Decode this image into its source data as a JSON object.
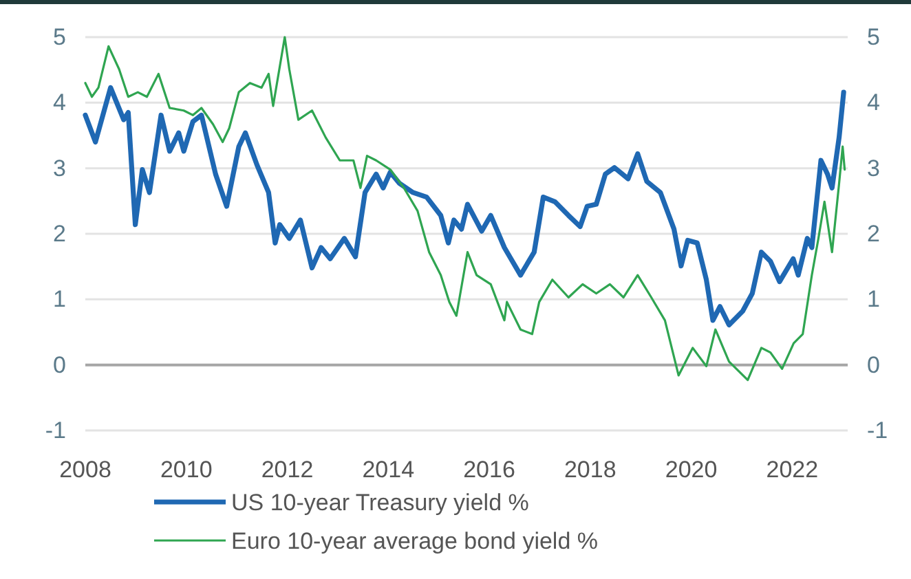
{
  "chart_data": {
    "type": "line",
    "xlim": [
      2008,
      2023.1
    ],
    "xticks": [
      2008,
      2010,
      2012,
      2014,
      2016,
      2018,
      2020,
      2022
    ],
    "ylim": [
      -1,
      5
    ],
    "yticks": [
      -1,
      0,
      1,
      2,
      3,
      4,
      5
    ],
    "y2lim": [
      -1,
      5
    ],
    "y2ticks": [
      -1,
      0,
      1,
      2,
      3,
      4,
      5
    ],
    "grid": "y",
    "legend": "bottom",
    "line_style": "solid",
    "marker": "none",
    "ref_lines": [
      {
        "axis": "y",
        "value": 0,
        "color": "#a6a6a6"
      }
    ],
    "series": [
      {
        "name": "US 10-year Treasury yield %",
        "color": "#1f68b3",
        "x": [
          2008.0,
          2008.2,
          2008.5,
          2008.76,
          2008.85,
          2008.99,
          2009.13,
          2009.27,
          2009.5,
          2009.67,
          2009.85,
          2009.95,
          2010.13,
          2010.3,
          2010.58,
          2010.8,
          2011.04,
          2011.17,
          2011.4,
          2011.63,
          2011.76,
          2011.85,
          2012.04,
          2012.26,
          2012.49,
          2012.67,
          2012.85,
          2013.13,
          2013.35,
          2013.54,
          2013.76,
          2013.9,
          2014.04,
          2014.22,
          2014.49,
          2014.76,
          2015.04,
          2015.19,
          2015.3,
          2015.45,
          2015.57,
          2015.85,
          2016.03,
          2016.3,
          2016.62,
          2016.89,
          2017.07,
          2017.3,
          2017.57,
          2017.8,
          2017.94,
          2018.12,
          2018.3,
          2018.48,
          2018.75,
          2018.94,
          2019.12,
          2019.39,
          2019.66,
          2019.8,
          2019.93,
          2020.12,
          2020.3,
          2020.43,
          2020.57,
          2020.75,
          2021.02,
          2021.21,
          2021.39,
          2021.57,
          2021.75,
          2022.02,
          2022.12,
          2022.3,
          2022.39,
          2022.57,
          2022.7,
          2022.79,
          2022.93,
          2023.02
        ],
        "values": [
          3.81,
          3.4,
          4.23,
          3.74,
          3.85,
          2.14,
          2.98,
          2.63,
          3.81,
          3.26,
          3.54,
          3.26,
          3.71,
          3.81,
          2.91,
          2.42,
          3.33,
          3.54,
          3.05,
          2.63,
          1.86,
          2.14,
          1.93,
          2.21,
          1.48,
          1.79,
          1.62,
          1.93,
          1.65,
          2.63,
          2.91,
          2.7,
          2.94,
          2.77,
          2.63,
          2.56,
          2.28,
          1.86,
          2.21,
          2.07,
          2.45,
          2.04,
          2.28,
          1.79,
          1.37,
          1.72,
          2.56,
          2.49,
          2.28,
          2.11,
          2.42,
          2.45,
          2.91,
          3.01,
          2.84,
          3.22,
          2.8,
          2.63,
          2.07,
          1.51,
          1.9,
          1.86,
          1.3,
          0.68,
          0.89,
          0.61,
          0.82,
          1.09,
          1.72,
          1.58,
          1.27,
          1.62,
          1.37,
          1.93,
          1.79,
          3.12,
          2.91,
          2.7,
          3.47,
          4.16
        ]
      },
      {
        "name": "Euro 10-year average bond yield %",
        "color": "#2fa551",
        "x": [
          2008.0,
          2008.13,
          2008.26,
          2008.46,
          2008.67,
          2008.85,
          2009.04,
          2009.22,
          2009.45,
          2009.67,
          2009.95,
          2010.13,
          2010.3,
          2010.53,
          2010.72,
          2010.85,
          2011.04,
          2011.26,
          2011.49,
          2011.63,
          2011.72,
          2011.95,
          2012.04,
          2012.22,
          2012.49,
          2012.76,
          2013.04,
          2013.31,
          2013.45,
          2013.58,
          2013.76,
          2014.04,
          2014.31,
          2014.58,
          2014.81,
          2015.04,
          2015.21,
          2015.35,
          2015.57,
          2015.75,
          2016.03,
          2016.3,
          2016.35,
          2016.62,
          2016.85,
          2016.99,
          2017.25,
          2017.57,
          2017.85,
          2018.12,
          2018.39,
          2018.66,
          2018.94,
          2019.21,
          2019.48,
          2019.75,
          2020.03,
          2020.3,
          2020.48,
          2020.75,
          2021.12,
          2021.39,
          2021.57,
          2021.8,
          2022.03,
          2022.21,
          2022.39,
          2022.52,
          2022.64,
          2022.79,
          2022.93,
          2023.0,
          2023.04
        ],
        "values": [
          4.3,
          4.09,
          4.23,
          4.86,
          4.51,
          4.09,
          4.16,
          4.09,
          4.44,
          3.92,
          3.88,
          3.81,
          3.92,
          3.67,
          3.4,
          3.61,
          4.16,
          4.3,
          4.23,
          4.44,
          3.95,
          5.0,
          4.51,
          3.74,
          3.88,
          3.47,
          3.12,
          3.12,
          2.7,
          3.19,
          3.12,
          2.98,
          2.7,
          2.35,
          1.72,
          1.37,
          0.96,
          0.75,
          1.72,
          1.37,
          1.23,
          0.68,
          0.96,
          0.54,
          0.47,
          0.96,
          1.3,
          1.03,
          1.23,
          1.09,
          1.23,
          1.03,
          1.37,
          1.03,
          0.68,
          -0.16,
          0.26,
          -0.02,
          0.54,
          0.05,
          -0.23,
          0.26,
          0.19,
          -0.06,
          0.33,
          0.47,
          1.37,
          1.93,
          2.49,
          1.72,
          2.77,
          3.33,
          2.98
        ]
      }
    ]
  }
}
